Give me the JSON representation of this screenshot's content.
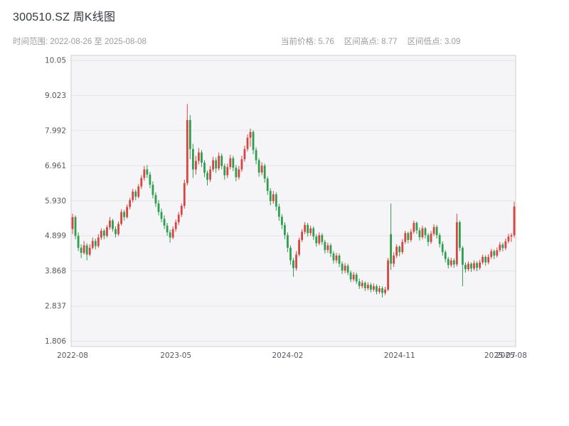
{
  "header": {
    "title": "300510.SZ 周K线图",
    "date_range": "时间范围: 2022-08-26 至 2025-08-08",
    "stats": [
      "当前价格: 5.76",
      "区间高点: 8.77",
      "区间低点: 3.09"
    ]
  },
  "chart_data": {
    "type": "candlestick",
    "symbol": "300510.SZ",
    "interval": "weekly",
    "title": "300510.SZ 周K线图",
    "date_start": "2022-08-26",
    "date_end": "2025-08-08",
    "current_price": 5.76,
    "range_high": 8.77,
    "range_low": 3.09,
    "legend": "none",
    "grid": "horizontal",
    "ylim": [
      1.65,
      10.2
    ],
    "y_ticks": [
      "1.806",
      "2.837",
      "3.868",
      "4.899",
      "5.930",
      "6.961",
      "7.992",
      "9.023",
      "10.05"
    ],
    "x_ticks": [
      {
        "i": 0,
        "label": "2022-08"
      },
      {
        "i": 36,
        "label": "2023-05"
      },
      {
        "i": 75,
        "label": "2024-02"
      },
      {
        "i": 114,
        "label": "2024-11"
      },
      {
        "i": 149,
        "label": "2025-07"
      },
      {
        "i": 153,
        "label": "2025-08"
      }
    ],
    "up_color": "#d6453f",
    "down_color": "#2f9e4f",
    "plot_bg": "#f5f5f8",
    "grid_color": "#e4e4ea",
    "spine_color": "#cfcfd6",
    "tick_label_color": "#55585e",
    "ohlc": [
      [
        5.1,
        5.55,
        4.95,
        5.45
      ],
      [
        5.45,
        5.5,
        4.8,
        4.9
      ],
      [
        4.9,
        5.0,
        4.45,
        4.55
      ],
      [
        4.55,
        4.65,
        4.25,
        4.4
      ],
      [
        4.4,
        4.75,
        4.35,
        4.62
      ],
      [
        4.62,
        4.68,
        4.18,
        4.35
      ],
      [
        4.35,
        4.65,
        4.3,
        4.55
      ],
      [
        4.55,
        4.85,
        4.5,
        4.75
      ],
      [
        4.75,
        4.82,
        4.5,
        4.6
      ],
      [
        4.6,
        4.95,
        4.55,
        4.85
      ],
      [
        4.85,
        5.12,
        4.78,
        5.05
      ],
      [
        5.05,
        5.1,
        4.8,
        4.9
      ],
      [
        4.9,
        5.22,
        4.85,
        5.15
      ],
      [
        5.15,
        5.45,
        5.08,
        5.35
      ],
      [
        5.35,
        5.4,
        5.02,
        5.1
      ],
      [
        5.1,
        5.18,
        4.85,
        4.95
      ],
      [
        4.95,
        5.32,
        4.9,
        5.25
      ],
      [
        5.25,
        5.68,
        5.2,
        5.6
      ],
      [
        5.6,
        5.66,
        5.35,
        5.45
      ],
      [
        5.45,
        5.82,
        5.4,
        5.75
      ],
      [
        5.75,
        6.02,
        5.68,
        5.95
      ],
      [
        5.95,
        6.28,
        5.88,
        6.2
      ],
      [
        6.2,
        6.26,
        5.95,
        6.05
      ],
      [
        6.05,
        6.42,
        6.0,
        6.35
      ],
      [
        6.35,
        6.68,
        6.28,
        6.6
      ],
      [
        6.6,
        6.95,
        6.52,
        6.85
      ],
      [
        6.85,
        6.98,
        6.6,
        6.7
      ],
      [
        6.7,
        6.78,
        6.3,
        6.4
      ],
      [
        6.4,
        6.5,
        6.0,
        6.1
      ],
      [
        6.1,
        6.18,
        5.75,
        5.85
      ],
      [
        5.85,
        5.95,
        5.5,
        5.6
      ],
      [
        5.6,
        5.7,
        5.3,
        5.4
      ],
      [
        5.4,
        5.5,
        5.1,
        5.2
      ],
      [
        5.2,
        5.28,
        4.9,
        5.0
      ],
      [
        5.0,
        5.08,
        4.7,
        4.85
      ],
      [
        4.85,
        5.18,
        4.8,
        5.1
      ],
      [
        5.1,
        5.38,
        5.02,
        5.3
      ],
      [
        5.3,
        5.6,
        5.22,
        5.52
      ],
      [
        5.52,
        5.85,
        5.45,
        5.78
      ],
      [
        5.78,
        6.55,
        5.7,
        6.45
      ],
      [
        6.45,
        8.77,
        6.38,
        8.3
      ],
      [
        8.3,
        8.45,
        7.15,
        7.45
      ],
      [
        7.45,
        7.6,
        6.6,
        6.85
      ],
      [
        6.85,
        7.25,
        6.7,
        7.1
      ],
      [
        7.1,
        7.48,
        7.0,
        7.35
      ],
      [
        7.35,
        7.42,
        6.92,
        7.05
      ],
      [
        7.05,
        7.12,
        6.62,
        6.75
      ],
      [
        6.75,
        6.82,
        6.38,
        6.55
      ],
      [
        6.55,
        6.95,
        6.48,
        6.85
      ],
      [
        6.85,
        7.22,
        6.78,
        7.12
      ],
      [
        7.12,
        7.2,
        6.75,
        6.88
      ],
      [
        6.88,
        7.35,
        6.82,
        7.25
      ],
      [
        7.25,
        7.32,
        6.85,
        6.95
      ],
      [
        6.95,
        7.02,
        6.55,
        6.68
      ],
      [
        6.68,
        7.02,
        6.6,
        6.92
      ],
      [
        6.92,
        7.28,
        6.85,
        7.18
      ],
      [
        7.18,
        7.25,
        6.8,
        6.9
      ],
      [
        6.9,
        6.98,
        6.5,
        6.62
      ],
      [
        6.62,
        6.95,
        6.55,
        6.85
      ],
      [
        6.85,
        7.25,
        6.78,
        7.15
      ],
      [
        7.15,
        7.55,
        7.08,
        7.45
      ],
      [
        7.45,
        7.88,
        7.38,
        7.78
      ],
      [
        7.78,
        8.05,
        7.52,
        7.95
      ],
      [
        7.95,
        8.0,
        7.3,
        7.42
      ],
      [
        7.42,
        7.5,
        7.0,
        7.12
      ],
      [
        7.12,
        7.18,
        6.64,
        6.76
      ],
      [
        6.76,
        7.06,
        6.68,
        6.96
      ],
      [
        6.96,
        7.02,
        6.46,
        6.58
      ],
      [
        6.58,
        6.64,
        6.1,
        6.22
      ],
      [
        6.22,
        6.3,
        5.8,
        5.92
      ],
      [
        5.92,
        6.22,
        5.84,
        6.12
      ],
      [
        6.12,
        6.18,
        5.64,
        5.76
      ],
      [
        5.76,
        5.84,
        5.34,
        5.46
      ],
      [
        5.46,
        5.54,
        5.1,
        5.22
      ],
      [
        5.22,
        5.3,
        4.8,
        4.92
      ],
      [
        4.92,
        5.0,
        4.42,
        4.55
      ],
      [
        4.55,
        4.62,
        4.05,
        4.18
      ],
      [
        4.18,
        4.25,
        3.7,
        3.95
      ],
      [
        3.95,
        4.45,
        3.88,
        4.35
      ],
      [
        4.35,
        4.85,
        4.3,
        4.78
      ],
      [
        4.78,
        5.1,
        4.72,
        5.02
      ],
      [
        5.02,
        5.3,
        4.95,
        5.22
      ],
      [
        5.22,
        5.28,
        4.88,
        4.98
      ],
      [
        4.98,
        5.2,
        4.9,
        5.12
      ],
      [
        5.12,
        5.18,
        4.78,
        4.88
      ],
      [
        4.88,
        4.95,
        4.58,
        4.68
      ],
      [
        4.68,
        5.0,
        4.62,
        4.92
      ],
      [
        4.92,
        4.98,
        4.64,
        4.72
      ],
      [
        4.72,
        4.78,
        4.38,
        4.48
      ],
      [
        4.48,
        4.7,
        4.4,
        4.62
      ],
      [
        4.62,
        4.68,
        4.28,
        4.38
      ],
      [
        4.38,
        4.45,
        4.08,
        4.18
      ],
      [
        4.18,
        4.4,
        4.1,
        4.32
      ],
      [
        4.32,
        4.38,
        3.98,
        4.08
      ],
      [
        4.08,
        4.15,
        3.78,
        3.88
      ],
      [
        3.88,
        4.1,
        3.8,
        4.02
      ],
      [
        4.02,
        4.08,
        3.74,
        3.82
      ],
      [
        3.82,
        3.88,
        3.54,
        3.62
      ],
      [
        3.62,
        3.84,
        3.56,
        3.76
      ],
      [
        3.76,
        3.82,
        3.48,
        3.56
      ],
      [
        3.56,
        3.64,
        3.34,
        3.42
      ],
      [
        3.42,
        3.6,
        3.36,
        3.52
      ],
      [
        3.52,
        3.56,
        3.28,
        3.36
      ],
      [
        3.36,
        3.54,
        3.3,
        3.46
      ],
      [
        3.46,
        3.52,
        3.24,
        3.32
      ],
      [
        3.32,
        3.5,
        3.26,
        3.42
      ],
      [
        3.42,
        3.48,
        3.18,
        3.26
      ],
      [
        3.26,
        3.44,
        3.2,
        3.36
      ],
      [
        3.36,
        3.42,
        3.09,
        3.22
      ],
      [
        3.22,
        3.4,
        3.16,
        3.32
      ],
      [
        3.32,
        4.25,
        3.28,
        4.18
      ],
      [
        4.95,
        5.85,
        3.9,
        4.08
      ],
      [
        4.08,
        4.42,
        3.98,
        4.32
      ],
      [
        4.32,
        4.65,
        4.25,
        4.58
      ],
      [
        4.58,
        4.62,
        4.3,
        4.42
      ],
      [
        4.42,
        4.8,
        4.36,
        4.72
      ],
      [
        4.72,
        5.05,
        4.66,
        4.98
      ],
      [
        4.98,
        5.02,
        4.68,
        4.78
      ],
      [
        4.78,
        5.1,
        4.72,
        5.02
      ],
      [
        5.02,
        5.35,
        4.96,
        5.28
      ],
      [
        5.28,
        5.32,
        4.96,
        5.06
      ],
      [
        5.06,
        5.14,
        4.76,
        4.86
      ],
      [
        4.86,
        5.2,
        4.8,
        5.12
      ],
      [
        5.12,
        5.16,
        4.82,
        4.92
      ],
      [
        4.92,
        4.98,
        4.6,
        4.72
      ],
      [
        4.72,
        5.04,
        4.66,
        4.96
      ],
      [
        4.96,
        5.24,
        4.9,
        5.16
      ],
      [
        5.16,
        5.22,
        4.82,
        4.92
      ],
      [
        4.92,
        4.98,
        4.56,
        4.66
      ],
      [
        4.66,
        4.74,
        4.32,
        4.42
      ],
      [
        4.42,
        4.48,
        4.12,
        4.22
      ],
      [
        4.22,
        4.28,
        3.94,
        4.04
      ],
      [
        4.04,
        4.26,
        3.98,
        4.18
      ],
      [
        4.18,
        4.24,
        3.96,
        4.06
      ],
      [
        4.06,
        5.55,
        4.0,
        5.3
      ],
      [
        5.3,
        5.35,
        4.45,
        4.55
      ],
      [
        4.55,
        4.6,
        3.42,
        4.05
      ],
      [
        4.05,
        4.12,
        3.82,
        3.92
      ],
      [
        3.92,
        4.15,
        3.86,
        4.08
      ],
      [
        4.08,
        4.12,
        3.84,
        3.94
      ],
      [
        3.94,
        4.18,
        3.88,
        4.1
      ],
      [
        4.1,
        4.16,
        3.86,
        3.96
      ],
      [
        3.96,
        4.2,
        3.9,
        4.12
      ],
      [
        4.12,
        4.35,
        4.06,
        4.28
      ],
      [
        4.28,
        4.33,
        4.02,
        4.12
      ],
      [
        4.12,
        4.36,
        4.06,
        4.28
      ],
      [
        4.28,
        4.52,
        4.22,
        4.45
      ],
      [
        4.45,
        4.5,
        4.22,
        4.32
      ],
      [
        4.32,
        4.56,
        4.26,
        4.48
      ],
      [
        4.48,
        4.72,
        4.42,
        4.64
      ],
      [
        4.64,
        4.7,
        4.44,
        4.54
      ],
      [
        4.54,
        4.82,
        4.48,
        4.74
      ],
      [
        4.74,
        4.96,
        4.68,
        4.88
      ],
      [
        4.88,
        4.98,
        4.72,
        4.92
      ],
      [
        4.92,
        5.9,
        4.85,
        5.76
      ]
    ]
  }
}
